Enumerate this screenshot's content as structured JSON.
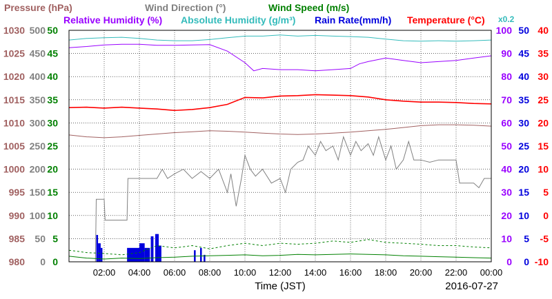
{
  "chart_data": {
    "type": "line",
    "date": "2016-07-27",
    "xlabel": "Time (JST)",
    "x_ticks": [
      "02:00",
      "04:00",
      "06:00",
      "08:00",
      "10:00",
      "12:00",
      "14:00",
      "16:00",
      "18:00",
      "20:00",
      "22:00",
      "00:00"
    ],
    "x_range_hours": [
      0,
      24
    ],
    "legend_row1": [
      {
        "text": "Pressure (hPa)",
        "color": "#a06060"
      },
      {
        "text": "Wind Direction (°)",
        "color": "#808080"
      },
      {
        "text": "Wind Speed (m/s)",
        "color": "#008000"
      }
    ],
    "legend_row2": [
      {
        "text": "Relative Humidity (%)",
        "color": "#9900ff"
      },
      {
        "text": "Absolute Humidity (g/m³)",
        "color": "#33bbbb"
      },
      {
        "text": "Rain Rate(mm/h)",
        "color": "#0000dd"
      },
      {
        "text": "Temperature (°C)",
        "color": "#ff0000"
      },
      {
        "text": "x0.2",
        "color": "#33bbbb"
      }
    ],
    "axes": [
      {
        "name": "pressure",
        "unit": "hPa",
        "color": "#a06060",
        "range": [
          980,
          1030
        ],
        "ticks": [
          "980",
          "985",
          "990",
          "995",
          "1000",
          "1005",
          "1010",
          "1015",
          "1020",
          "1025",
          "1030"
        ]
      },
      {
        "name": "wind_direction",
        "unit": "°",
        "color": "#808080",
        "range": [
          0,
          500
        ],
        "ticks": [
          "0",
          "50",
          "100",
          "150",
          "200",
          "250",
          "300",
          "350",
          "400",
          "450",
          "500"
        ]
      },
      {
        "name": "wind_speed",
        "unit": "m/s",
        "color": "#008000",
        "range": [
          0,
          50
        ],
        "ticks": [
          "0",
          "5",
          "10",
          "15",
          "20",
          "25",
          "30",
          "35",
          "40",
          "45",
          "50"
        ]
      },
      {
        "name": "relative_humidity",
        "unit": "%",
        "color": "#9900ff",
        "range": [
          0,
          100
        ],
        "ticks": [
          "0",
          "10",
          "20",
          "30",
          "40",
          "50",
          "60",
          "70",
          "80",
          "90",
          "100"
        ]
      },
      {
        "name": "rain_rate",
        "unit": "mm/h",
        "color": "#0000dd",
        "range": [
          0,
          50
        ],
        "ticks": [
          "0",
          "5",
          "10",
          "15",
          "20",
          "25",
          "30",
          "35",
          "40",
          "45",
          "50"
        ]
      },
      {
        "name": "temperature",
        "unit": "°C",
        "color": "#ff0000",
        "range": [
          -10,
          40
        ],
        "ticks": [
          "-10",
          "-5",
          "0",
          "5",
          "10",
          "15",
          "20",
          "25",
          "30",
          "35",
          "40"
        ]
      }
    ],
    "grid": true,
    "series": [
      {
        "name": "Pressure (hPa)",
        "axis": "pressure",
        "color": "#a06060",
        "style": "solid",
        "points": [
          [
            0,
            1007.4
          ],
          [
            1,
            1007.0
          ],
          [
            2,
            1006.8
          ],
          [
            3,
            1007.0
          ],
          [
            4,
            1007.3
          ],
          [
            5,
            1007.6
          ],
          [
            6,
            1007.9
          ],
          [
            7,
            1008.1
          ],
          [
            8,
            1008.3
          ],
          [
            9,
            1008.2
          ],
          [
            10,
            1008.0
          ],
          [
            11,
            1007.8
          ],
          [
            12,
            1007.6
          ],
          [
            13,
            1007.5
          ],
          [
            14,
            1007.6
          ],
          [
            15,
            1007.8
          ],
          [
            16,
            1008.0
          ],
          [
            17,
            1008.3
          ],
          [
            18,
            1008.6
          ],
          [
            19,
            1009.0
          ],
          [
            20,
            1009.4
          ],
          [
            21,
            1009.6
          ],
          [
            22,
            1009.6
          ],
          [
            23,
            1009.5
          ],
          [
            24,
            1009.3
          ]
        ]
      },
      {
        "name": "Temperature (°C)",
        "axis": "temperature",
        "color": "#ff0000",
        "style": "solid",
        "points": [
          [
            0,
            23.3
          ],
          [
            1,
            23.4
          ],
          [
            2,
            23.2
          ],
          [
            3,
            23.4
          ],
          [
            4,
            23.2
          ],
          [
            5,
            23.0
          ],
          [
            6,
            22.7
          ],
          [
            7,
            22.9
          ],
          [
            8,
            23.3
          ],
          [
            9,
            24.0
          ],
          [
            10,
            25.5
          ],
          [
            11,
            25.4
          ],
          [
            12,
            25.8
          ],
          [
            13,
            25.9
          ],
          [
            14,
            26.1
          ],
          [
            15,
            26.0
          ],
          [
            16,
            25.9
          ],
          [
            17,
            25.6
          ],
          [
            18,
            25.0
          ],
          [
            19,
            24.7
          ],
          [
            20,
            24.5
          ],
          [
            21,
            24.5
          ],
          [
            22,
            24.4
          ],
          [
            23,
            24.2
          ],
          [
            24,
            24.1
          ]
        ]
      },
      {
        "name": "Relative Humidity (%)",
        "axis": "relative_humidity",
        "color": "#9900ff",
        "style": "solid",
        "points": [
          [
            0,
            92.5
          ],
          [
            1,
            93.0
          ],
          [
            2,
            93.7
          ],
          [
            3,
            94.0
          ],
          [
            4,
            94.0
          ],
          [
            5,
            93.5
          ],
          [
            6,
            93.5
          ],
          [
            7,
            93.7
          ],
          [
            8,
            93.8
          ],
          [
            9,
            91.0
          ],
          [
            10,
            86.0
          ],
          [
            10.5,
            82.5
          ],
          [
            11,
            83.5
          ],
          [
            12,
            83.0
          ],
          [
            13,
            83.0
          ],
          [
            14,
            82.5
          ],
          [
            15,
            83.0
          ],
          [
            16,
            83.5
          ],
          [
            16.5,
            85.5
          ],
          [
            17,
            86.5
          ],
          [
            18,
            88.0
          ],
          [
            19,
            87.0
          ],
          [
            20,
            86.0
          ],
          [
            21,
            86.5
          ],
          [
            22,
            87.0
          ],
          [
            23,
            88.0
          ],
          [
            24,
            89.0
          ]
        ]
      },
      {
        "name": "Absolute Humidity (g/m³)",
        "axis": "relative_humidity",
        "color": "#33bbbb",
        "style": "solid",
        "points": [
          [
            0,
            95.8
          ],
          [
            1,
            96.5
          ],
          [
            2,
            96.8
          ],
          [
            3,
            97.0
          ],
          [
            4,
            96.5
          ],
          [
            5,
            95.8
          ],
          [
            6,
            95.5
          ],
          [
            7,
            95.5
          ],
          [
            8,
            96.0
          ],
          [
            9,
            96.8
          ],
          [
            10,
            97.5
          ],
          [
            11,
            97.5
          ],
          [
            12,
            98.0
          ],
          [
            13,
            97.5
          ],
          [
            14,
            97.8
          ],
          [
            15,
            97.5
          ],
          [
            16,
            97.3
          ],
          [
            17,
            97.0
          ],
          [
            18,
            96.2
          ],
          [
            19,
            95.5
          ],
          [
            20,
            95.3
          ],
          [
            21,
            95.5
          ],
          [
            22,
            95.3
          ],
          [
            23,
            95.5
          ],
          [
            24,
            95.8
          ]
        ]
      },
      {
        "name": "Wind Direction (°)",
        "axis": "wind_direction",
        "color": "#808080",
        "style": "solid",
        "points": [
          [
            1.5,
            0
          ],
          [
            1.55,
            135
          ],
          [
            2.0,
            135
          ],
          [
            2.05,
            90
          ],
          [
            3.3,
            90
          ],
          [
            3.35,
            180
          ],
          [
            5.0,
            180
          ],
          [
            5.3,
            200
          ],
          [
            5.6,
            180
          ],
          [
            6.0,
            190
          ],
          [
            6.5,
            200
          ],
          [
            7.0,
            180
          ],
          [
            7.5,
            195
          ],
          [
            8.0,
            180
          ],
          [
            8.5,
            200
          ],
          [
            9.0,
            150
          ],
          [
            9.2,
            190
          ],
          [
            9.5,
            120
          ],
          [
            9.8,
            180
          ],
          [
            10.0,
            230
          ],
          [
            10.3,
            200
          ],
          [
            10.6,
            185
          ],
          [
            11.0,
            200
          ],
          [
            11.5,
            170
          ],
          [
            12.0,
            180
          ],
          [
            12.3,
            150
          ],
          [
            12.6,
            200
          ],
          [
            13.0,
            215
          ],
          [
            13.3,
            220
          ],
          [
            13.6,
            250
          ],
          [
            14.0,
            230
          ],
          [
            14.3,
            260
          ],
          [
            14.6,
            240
          ],
          [
            15.0,
            250
          ],
          [
            15.3,
            220
          ],
          [
            15.6,
            270
          ],
          [
            16.0,
            230
          ],
          [
            16.3,
            260
          ],
          [
            16.6,
            240
          ],
          [
            17.0,
            255
          ],
          [
            17.3,
            230
          ],
          [
            17.6,
            270
          ],
          [
            18.0,
            220
          ],
          [
            18.3,
            250
          ],
          [
            18.6,
            200
          ],
          [
            19.0,
            220
          ],
          [
            19.3,
            260
          ],
          [
            19.6,
            220
          ],
          [
            20.0,
            220
          ],
          [
            20.5,
            215
          ],
          [
            21.0,
            220
          ],
          [
            21.5,
            220
          ],
          [
            22.0,
            220
          ],
          [
            22.2,
            170
          ],
          [
            22.5,
            170
          ],
          [
            23.0,
            170
          ],
          [
            23.3,
            160
          ],
          [
            23.6,
            180
          ],
          [
            24.0,
            180
          ]
        ]
      },
      {
        "name": "Wind Speed (m/s)",
        "axis": "wind_speed",
        "color": "#008000",
        "style": "solid",
        "points": [
          [
            0,
            1.2
          ],
          [
            1,
            0.8
          ],
          [
            2,
            0.6
          ],
          [
            3,
            0.8
          ],
          [
            4,
            0.7
          ],
          [
            5,
            0.9
          ],
          [
            6,
            1.0
          ],
          [
            7,
            1.2
          ],
          [
            8,
            1.3
          ],
          [
            9,
            1.4
          ],
          [
            10,
            1.5
          ],
          [
            11,
            1.3
          ],
          [
            12,
            1.4
          ],
          [
            13,
            1.6
          ],
          [
            14,
            1.5
          ],
          [
            15,
            1.6
          ],
          [
            16,
            1.7
          ],
          [
            17,
            1.6
          ],
          [
            18,
            1.5
          ],
          [
            19,
            1.3
          ],
          [
            20,
            1.2
          ],
          [
            21,
            1.1
          ],
          [
            22,
            1.0
          ],
          [
            23,
            0.9
          ],
          [
            24,
            0.8
          ]
        ]
      },
      {
        "name": "Wind Speed Gust (m/s)",
        "axis": "wind_speed",
        "color": "#008000",
        "style": "dashed",
        "points": [
          [
            0,
            2.5
          ],
          [
            1,
            2.0
          ],
          [
            2,
            1.8
          ],
          [
            3,
            1.5
          ],
          [
            4,
            2.0
          ],
          [
            5,
            3.5
          ],
          [
            6,
            3.0
          ],
          [
            7,
            3.5
          ],
          [
            8,
            2.8
          ],
          [
            9,
            3.5
          ],
          [
            10,
            4.0
          ],
          [
            11,
            3.5
          ],
          [
            12,
            4.0
          ],
          [
            13,
            3.8
          ],
          [
            14,
            4.0
          ],
          [
            15,
            4.5
          ],
          [
            16,
            4.2
          ],
          [
            17,
            4.8
          ],
          [
            18,
            4.2
          ],
          [
            19,
            4.0
          ],
          [
            20,
            3.8
          ],
          [
            21,
            3.5
          ],
          [
            22,
            3.5
          ],
          [
            23,
            3.2
          ],
          [
            24,
            3.0
          ]
        ]
      }
    ],
    "rain_bars": [
      {
        "start": 1.55,
        "end": 1.65,
        "value": 5.8
      },
      {
        "start": 1.65,
        "end": 1.8,
        "value": 4.0
      },
      {
        "start": 1.8,
        "end": 1.9,
        "value": 3.0
      },
      {
        "start": 3.3,
        "end": 4.0,
        "value": 3.0
      },
      {
        "start": 4.0,
        "end": 4.3,
        "value": 4.0
      },
      {
        "start": 4.3,
        "end": 4.6,
        "value": 3.0
      },
      {
        "start": 4.65,
        "end": 4.8,
        "value": 5.5
      },
      {
        "start": 4.9,
        "end": 5.1,
        "value": 6.0
      },
      {
        "start": 5.1,
        "end": 5.25,
        "value": 3.5
      },
      {
        "start": 7.1,
        "end": 7.2,
        "value": 2.5
      },
      {
        "start": 7.45,
        "end": 7.55,
        "value": 3.0
      },
      {
        "start": 7.65,
        "end": 7.75,
        "value": 1.5
      }
    ]
  }
}
